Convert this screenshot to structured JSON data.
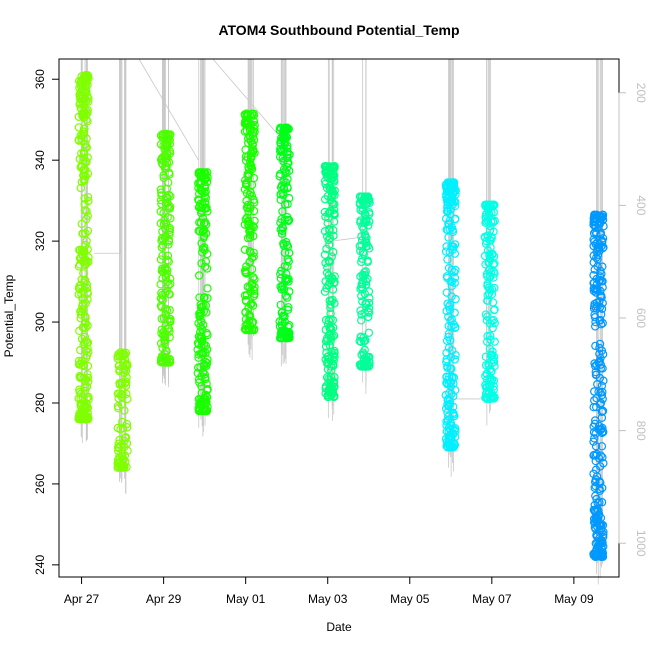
{
  "chart_data": {
    "type": "scatter",
    "title": "ATOM4 Southbound Potential_Temp",
    "xlabel": "Date",
    "ylabel": "Potential_Temp",
    "x_ticks": [
      "Apr 27",
      "Apr 29",
      "May 01",
      "May 03",
      "May 05",
      "May 07",
      "May 09"
    ],
    "x_tick_days": [
      0,
      2,
      4,
      6,
      8,
      10,
      12
    ],
    "xlim_days": [
      -0.55,
      13.1
    ],
    "y_ticks": [
      240,
      260,
      280,
      300,
      320,
      340,
      360
    ],
    "ylim": [
      237,
      365
    ],
    "y2_ticks": [
      200,
      400,
      600,
      800,
      1000
    ],
    "y2lim": [
      1060,
      140
    ],
    "y2_reversed": true,
    "grid": false,
    "series": [
      {
        "color": "#80FF00",
        "points": [
          {
            "x": 0.05,
            "ymin": 276,
            "ymax": 361
          },
          {
            "x": 1.0,
            "ymin": 264,
            "ymax": 292.5
          }
        ]
      },
      {
        "color": "#4DFF00",
        "points": [
          {
            "x": 2.05,
            "ymin": 290,
            "ymax": 346.5
          }
        ]
      },
      {
        "color": "#1AFF00",
        "points": [
          {
            "x": 2.95,
            "ymin": 278,
            "ymax": 337
          },
          {
            "x": 4.1,
            "ymin": 298,
            "ymax": 351.5
          }
        ]
      },
      {
        "color": "#00FF19",
        "points": [
          {
            "x": 4.95,
            "ymin": 296,
            "ymax": 348
          }
        ]
      },
      {
        "color": "#00FF80",
        "points": [
          {
            "x": 6.05,
            "ymin": 281.5,
            "ymax": 338.5
          }
        ]
      },
      {
        "color": "#00FF99",
        "points": [
          {
            "x": 6.9,
            "ymin": 289,
            "ymax": 331
          }
        ]
      },
      {
        "color": "#00F0FF",
        "points": [
          {
            "x": 9.0,
            "ymin": 269,
            "ymax": 334.5
          }
        ]
      },
      {
        "color": "#00FFE6",
        "points": [
          {
            "x": 9.95,
            "ymin": 281,
            "ymax": 329
          }
        ]
      },
      {
        "color": "#0099FF",
        "points": [
          {
            "x": 12.6,
            "ymin": 242,
            "ymax": 326.5
          }
        ]
      }
    ],
    "track_color": "#c8c8c8",
    "point_color_map": "hue by date"
  }
}
